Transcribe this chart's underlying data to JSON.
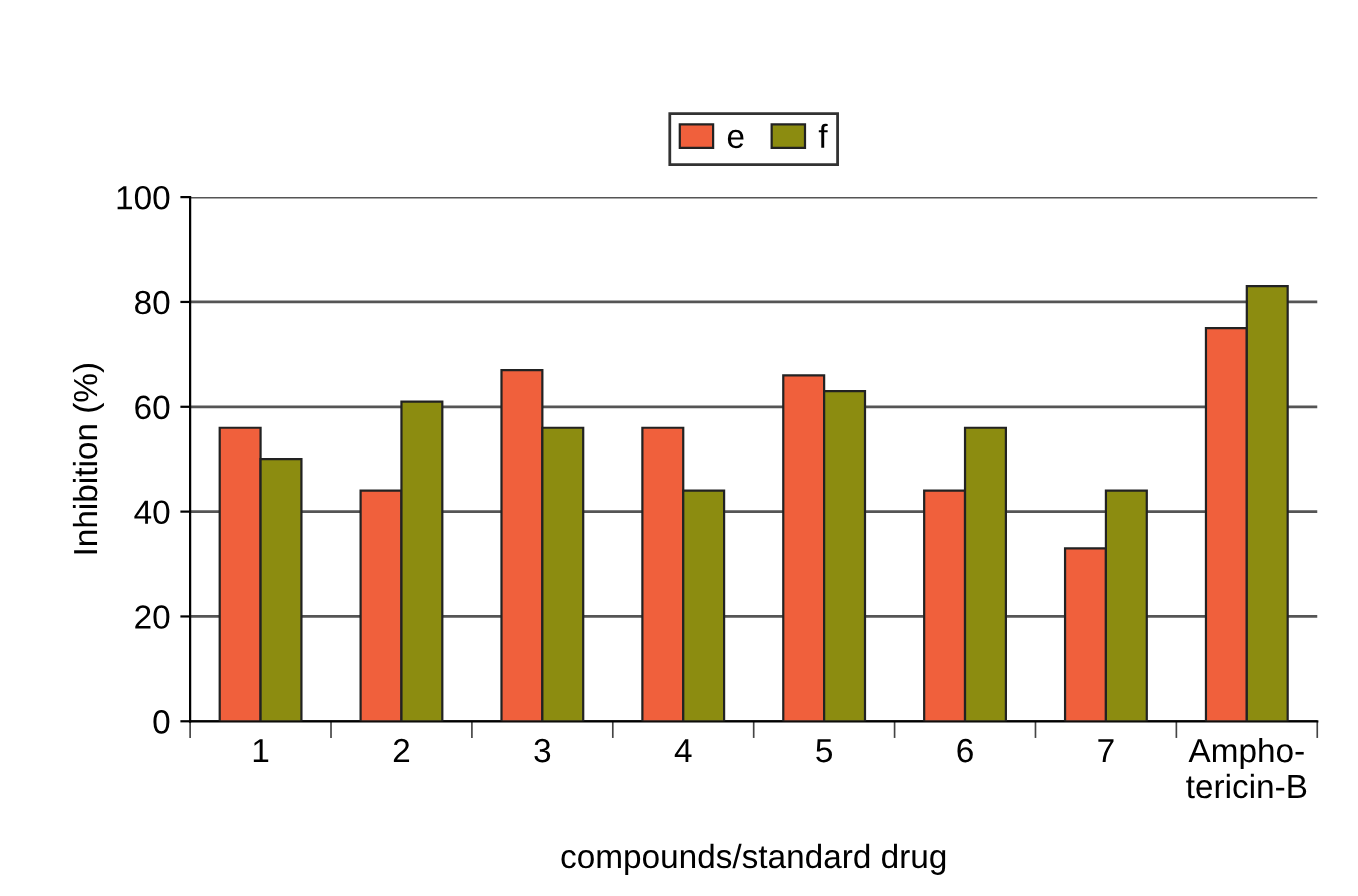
{
  "chart_data": {
    "type": "bar",
    "xlabel": "compounds/standard drug",
    "ylabel": "Inhibition (%)",
    "categories": [
      "1",
      "2",
      "3",
      "4",
      "5",
      "6",
      "7",
      "Ampho-\ntericin-B"
    ],
    "series": [
      {
        "name": "e",
        "color": "#f0603c",
        "values": [
          56,
          44,
          67,
          56,
          66,
          44,
          33,
          75
        ]
      },
      {
        "name": "f",
        "color": "#8c8c10",
        "values": [
          50,
          61,
          56,
          44,
          63,
          56,
          44,
          83
        ]
      }
    ],
    "ylim": [
      0,
      100
    ],
    "yticks": [
      0,
      20,
      40,
      60,
      80,
      100
    ],
    "grid": "y",
    "legend": "top"
  }
}
